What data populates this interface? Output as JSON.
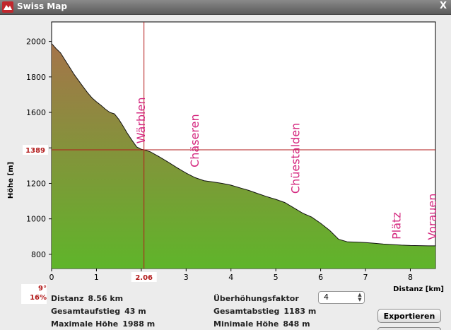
{
  "window": {
    "title": "Swiss Map",
    "close_glyph": "X"
  },
  "chart_data": {
    "type": "area",
    "ylabel": "Höhe [m]",
    "xlabel": "Distanz [km]",
    "xlim": [
      0,
      8.56
    ],
    "ylim": [
      720,
      2110
    ],
    "x_ticks": [
      0,
      1,
      2,
      3,
      4,
      5,
      6,
      7,
      8
    ],
    "y_ticks": [
      800,
      1000,
      1200,
      1400,
      1600,
      1800,
      2000
    ],
    "grid": false,
    "fill_colors": {
      "top": "#a5744a",
      "bottom": "#5fb52a"
    },
    "profile": [
      [
        0.0,
        1988
      ],
      [
        0.1,
        1960
      ],
      [
        0.2,
        1935
      ],
      [
        0.3,
        1895
      ],
      [
        0.4,
        1855
      ],
      [
        0.5,
        1815
      ],
      [
        0.6,
        1780
      ],
      [
        0.7,
        1745
      ],
      [
        0.8,
        1712
      ],
      [
        0.9,
        1682
      ],
      [
        1.0,
        1660
      ],
      [
        1.1,
        1640
      ],
      [
        1.2,
        1618
      ],
      [
        1.3,
        1600
      ],
      [
        1.4,
        1592
      ],
      [
        1.5,
        1560
      ],
      [
        1.6,
        1520
      ],
      [
        1.7,
        1478
      ],
      [
        1.8,
        1440
      ],
      [
        1.9,
        1405
      ],
      [
        2.0,
        1392
      ],
      [
        2.06,
        1389
      ],
      [
        2.2,
        1378
      ],
      [
        2.4,
        1350
      ],
      [
        2.6,
        1320
      ],
      [
        2.8,
        1288
      ],
      [
        3.0,
        1258
      ],
      [
        3.2,
        1232
      ],
      [
        3.4,
        1215
      ],
      [
        3.6,
        1208
      ],
      [
        3.8,
        1200
      ],
      [
        4.0,
        1190
      ],
      [
        4.2,
        1175
      ],
      [
        4.4,
        1160
      ],
      [
        4.6,
        1142
      ],
      [
        4.8,
        1125
      ],
      [
        5.0,
        1110
      ],
      [
        5.2,
        1092
      ],
      [
        5.4,
        1062
      ],
      [
        5.6,
        1032
      ],
      [
        5.8,
        1010
      ],
      [
        6.0,
        975
      ],
      [
        6.2,
        935
      ],
      [
        6.4,
        885
      ],
      [
        6.6,
        870
      ],
      [
        6.8,
        869
      ],
      [
        7.0,
        866
      ],
      [
        7.2,
        862
      ],
      [
        7.4,
        858
      ],
      [
        7.6,
        855
      ],
      [
        7.8,
        852
      ],
      [
        8.0,
        850
      ],
      [
        8.2,
        849
      ],
      [
        8.4,
        848
      ],
      [
        8.56,
        848
      ]
    ],
    "cursor": {
      "x": 2.06,
      "y": 1389,
      "x_label": "2.06",
      "y_label": "1389"
    },
    "place_labels": [
      {
        "name": "Wärblen",
        "x": 2.0
      },
      {
        "name": "Chäseren",
        "x": 3.2
      },
      {
        "name": "Chüestalden",
        "x": 5.45
      },
      {
        "name": "Plätz",
        "x": 7.7
      },
      {
        "name": "Vorauen",
        "x": 8.5
      }
    ]
  },
  "angle": {
    "degrees": "9°",
    "percent": "16%"
  },
  "stats": {
    "distance_label": "Distanz",
    "distance_value": "8.56 km",
    "ascent_label": "Gesamtaufstieg",
    "ascent_value": "43 m",
    "max_label": "Maximale Höhe",
    "max_value": "1988 m",
    "factor_label": "Überhöhungsfaktor",
    "factor_value": "4",
    "descent_label": "Gesamtabstieg",
    "descent_value": "1183 m",
    "min_label": "Minimale Höhe",
    "min_value": "848 m"
  },
  "export_label": "Exportieren"
}
